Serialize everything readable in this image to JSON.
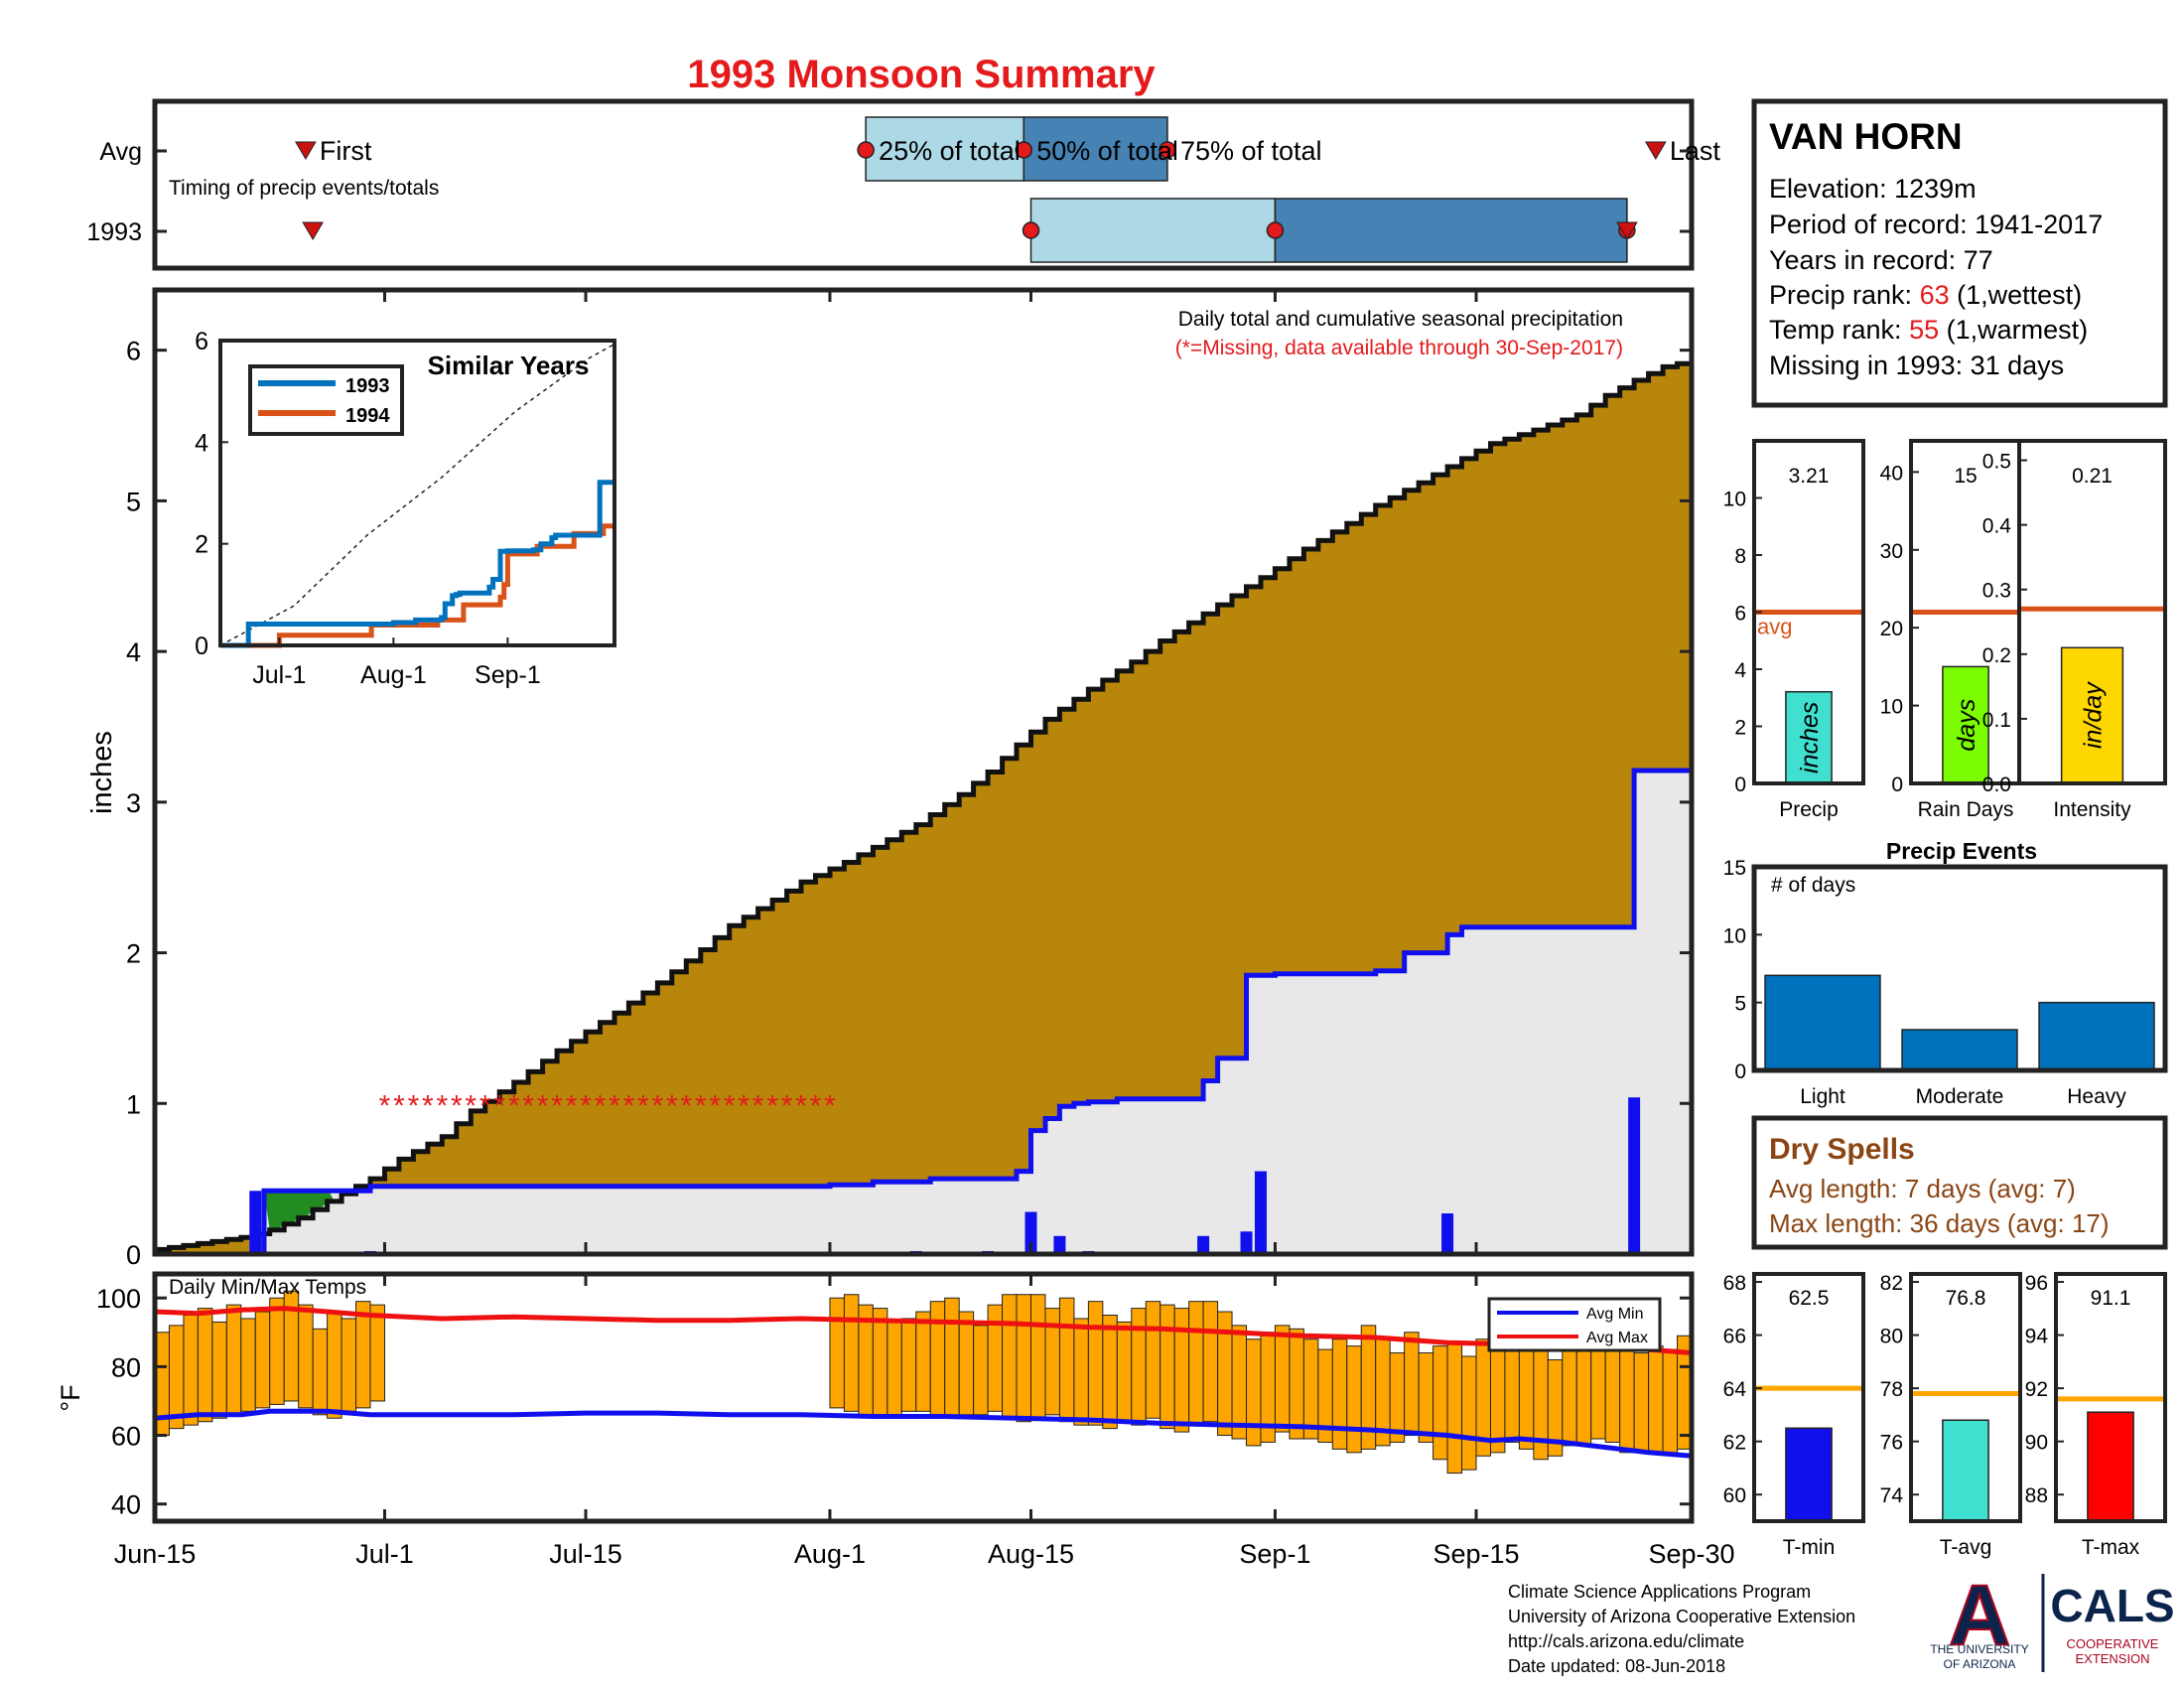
{
  "colors": {
    "red": "#e41a1c",
    "dark_red": "#cc1111",
    "normal_fill": "#b8860b",
    "obs_fill": "#e8e8e8",
    "obs_line": "#1010ee",
    "daily_bar": "#1010ee",
    "green": "#228b22",
    "light_blue": "#add8e6",
    "steel_blue": "#4682b4",
    "orange_line": "#d95319",
    "sim_1993": "#0072bd",
    "sim_1994": "#d95319",
    "temp_bar": "#ffa500",
    "avg_min": "#1010ee",
    "avg_max": "#ee1111",
    "cyan": "#40e0d0",
    "lime": "#7cfc00",
    "gold": "#ffd700",
    "event_blue": "#0072bd",
    "brown": "#8b4513",
    "ua_navy": "#0c234b",
    "ua_red": "#ab0520"
  },
  "title": "1993 Monsoon Summary",
  "timing": {
    "row_labels": [
      "Avg",
      "1993"
    ],
    "note": "Timing of precip events/totals",
    "first_label": "First",
    "last_label": "Last",
    "p25_label": "25% of total",
    "p50_label": "50% of total",
    "p75_label": "75% of total",
    "avg": {
      "first_day": 10.5,
      "p25_day": 49.5,
      "p50_day": 60.5,
      "p75_day": 70.5,
      "last_day": 104.5
    },
    "obs": {
      "first_day": 11,
      "p25_day": 61,
      "p50_day": 78,
      "p75_day": 102.5,
      "last_day": 102.5
    }
  },
  "station": {
    "name": "VAN HORN",
    "elevation": "Elevation: 1239m",
    "period": "Period of record: 1941-2017",
    "years": "Years in record: 77",
    "precip_rank_prefix": "Precip rank: ",
    "precip_rank_value": "63",
    "precip_rank_suffix": " (1,wettest)",
    "temp_rank_prefix": "Temp rank: ",
    "temp_rank_value": "55",
    "temp_rank_suffix": " (1,warmest)",
    "missing": "Missing in 1993: 31 days"
  },
  "main_chart": {
    "ylabel": "inches",
    "note_line1": "Daily total and cumulative seasonal precipitation",
    "note_line2": "(*=Missing, data available through 30-Sep-2017)",
    "x_ticks": [
      {
        "label": "Jun-15",
        "day": 0
      },
      {
        "label": "Jul-1",
        "day": 16
      },
      {
        "label": "Jul-15",
        "day": 30
      },
      {
        "label": "Aug-1",
        "day": 47
      },
      {
        "label": "Aug-15",
        "day": 61
      },
      {
        "label": "Sep-1",
        "day": 78
      },
      {
        "label": "Sep-15",
        "day": 92
      },
      {
        "label": "Sep-30",
        "day": 107
      }
    ],
    "y_ticks": [
      "0",
      "1",
      "2",
      "3",
      "4",
      "5",
      "6"
    ],
    "missing_marker": "*"
  },
  "chart_data": [
    {
      "type": "area",
      "title": "Daily total and cumulative seasonal precipitation",
      "ylabel": "inches",
      "x_unit": "day from Jun-15",
      "xlim": [
        0,
        107
      ],
      "ylim": [
        0,
        6.4
      ],
      "normal_cumulative": {
        "x": [
          0,
          3,
          6,
          8,
          10,
          12,
          15,
          17,
          20,
          22,
          25,
          28,
          32,
          35,
          38,
          40,
          43,
          45,
          48,
          50,
          53,
          56,
          58,
          60,
          62,
          65,
          68,
          70,
          73,
          75,
          78,
          80,
          83,
          85,
          88,
          91,
          93,
          96,
          99,
          101,
          103,
          105,
          107
        ],
        "y": [
          0.03,
          0.07,
          0.11,
          0.16,
          0.24,
          0.35,
          0.5,
          0.63,
          0.78,
          0.95,
          1.14,
          1.35,
          1.6,
          1.8,
          2.02,
          2.18,
          2.35,
          2.47,
          2.6,
          2.7,
          2.85,
          3.05,
          3.2,
          3.38,
          3.55,
          3.75,
          3.93,
          4.07,
          4.25,
          4.37,
          4.55,
          4.68,
          4.85,
          4.97,
          5.12,
          5.28,
          5.38,
          5.47,
          5.57,
          5.7,
          5.8,
          5.89,
          5.93
        ]
      },
      "observed_cumulative": {
        "x": [
          0,
          7,
          7.6,
          14,
          15,
          46,
          47,
          50,
          54,
          60,
          61,
          62,
          63,
          64,
          65,
          67,
          73,
          74,
          76,
          77,
          78,
          85,
          87,
          90,
          91,
          102,
          103,
          107
        ],
        "y": [
          0,
          0,
          0.42,
          0.42,
          0.45,
          0.45,
          0.46,
          0.48,
          0.5,
          0.55,
          0.82,
          0.9,
          0.98,
          1.0,
          1.01,
          1.03,
          1.15,
          1.3,
          1.85,
          1.85,
          1.86,
          1.88,
          2.0,
          2.12,
          2.17,
          2.17,
          3.21,
          3.21
        ]
      },
      "daily": {
        "x": [
          7,
          15,
          53,
          58,
          61,
          63,
          65,
          73,
          76,
          77,
          90,
          103
        ],
        "y": [
          0.42,
          0.02,
          0.02,
          0.02,
          0.28,
          0.12,
          0.02,
          0.12,
          0.15,
          0.55,
          0.27,
          1.04
        ]
      },
      "green_region": {
        "x_start": 7.6,
        "x_end": 12.5
      },
      "missing_days": {
        "start": 16,
        "end": 47,
        "marker_y": 1.0
      }
    },
    {
      "type": "line",
      "title": "Similar Years",
      "x_ticks": [
        "Jul-1",
        "Aug-1",
        "Sep-1"
      ],
      "y_ticks": [
        "0",
        "2",
        "4",
        "6"
      ],
      "xlim": [
        0,
        107
      ],
      "ylim": [
        0,
        6
      ],
      "series": [
        {
          "name": "1993",
          "x": [
            0,
            7,
            7.6,
            46,
            47,
            53,
            60,
            61,
            63,
            64,
            65,
            73,
            74,
            76,
            78,
            85,
            87,
            90,
            91,
            102,
            103,
            107
          ],
          "y": [
            0,
            0,
            0.42,
            0.42,
            0.45,
            0.5,
            0.55,
            0.82,
            0.98,
            1.0,
            1.03,
            1.15,
            1.3,
            1.85,
            1.86,
            1.88,
            2.0,
            2.12,
            2.17,
            2.17,
            3.21,
            3.21
          ]
        },
        {
          "name": "1994",
          "x": [
            0,
            15,
            16,
            40,
            41,
            58,
            59,
            65,
            66,
            75,
            76,
            77,
            78,
            85,
            86,
            95,
            96,
            103,
            104,
            107
          ],
          "y": [
            0,
            0,
            0.2,
            0.2,
            0.4,
            0.4,
            0.5,
            0.5,
            0.8,
            0.8,
            0.95,
            1.2,
            1.8,
            1.8,
            1.95,
            1.95,
            2.2,
            2.2,
            2.35,
            2.35
          ]
        },
        {
          "name": "normal",
          "x": [
            0,
            20,
            40,
            60,
            80,
            100,
            107
          ],
          "y": [
            0,
            0.78,
            2.18,
            3.3,
            4.6,
            5.65,
            5.93
          ]
        }
      ]
    },
    {
      "type": "bar",
      "title": "Daily Min/Max Temps",
      "ylabel": "°F",
      "y_ticks": [
        "40",
        "60",
        "80",
        "100"
      ],
      "ylim": [
        35,
        107
      ],
      "legend": [
        "Avg Min",
        "Avg Max"
      ],
      "legend_position": "top-right",
      "segments": [
        {
          "start_day": 0,
          "min": [
            60,
            62,
            63,
            64,
            65,
            66,
            67,
            68,
            69,
            70,
            68,
            66,
            65,
            67,
            68,
            70
          ],
          "max": [
            90,
            92,
            95,
            97,
            93,
            98,
            94,
            96,
            100,
            102,
            98,
            91,
            96,
            94,
            99,
            98
          ]
        },
        {
          "start_day": 47,
          "min": [
            68,
            67,
            66,
            65,
            66,
            67,
            67,
            66,
            65,
            66,
            66,
            67,
            65,
            64,
            65,
            66,
            64,
            63,
            63,
            62,
            64,
            63,
            65,
            62,
            61,
            63,
            64,
            60,
            59,
            57,
            58,
            61,
            59,
            59,
            58,
            56,
            55,
            56,
            57,
            58,
            60,
            58,
            53,
            49,
            50,
            54,
            55,
            58,
            56,
            53,
            54,
            57,
            57,
            59,
            58,
            55,
            55,
            55,
            55,
            56
          ],
          "max": [
            100,
            101,
            98,
            97,
            93,
            94,
            96,
            99,
            100,
            96,
            92,
            98,
            101,
            101,
            101,
            97,
            100,
            94,
            99,
            95,
            93,
            97,
            99,
            98,
            97,
            99,
            99,
            96,
            92,
            88,
            90,
            92,
            91,
            88,
            85,
            88,
            86,
            92,
            88,
            84,
            90,
            84,
            86,
            87,
            83,
            88,
            87,
            86,
            86,
            87,
            82,
            88,
            89,
            86,
            88,
            87,
            84,
            86,
            85,
            89
          ]
        }
      ],
      "avg_min": {
        "x": [
          0,
          3,
          6,
          8,
          12,
          15,
          20,
          25,
          30,
          35,
          40,
          45,
          50,
          55,
          60,
          65,
          70,
          75,
          80,
          85,
          90,
          93,
          95,
          98,
          100,
          104,
          107
        ],
        "y": [
          65,
          66,
          66,
          67,
          67,
          66,
          66,
          66,
          66.5,
          66.5,
          66,
          66,
          65.5,
          65.5,
          65,
          64.5,
          63.5,
          63,
          62.5,
          61.5,
          60,
          58.5,
          59,
          58,
          57,
          55,
          54
        ]
      },
      "avg_max": {
        "x": [
          0,
          3,
          6,
          9,
          12,
          15,
          20,
          25,
          30,
          35,
          40,
          45,
          50,
          55,
          60,
          65,
          70,
          75,
          80,
          85,
          90,
          95,
          100,
          104,
          107
        ],
        "y": [
          96,
          95.5,
          96.5,
          97,
          96,
          95,
          94,
          94.5,
          94,
          93.5,
          93.5,
          94,
          93.5,
          93,
          92.5,
          91.5,
          91,
          90,
          89,
          88.5,
          87,
          86.5,
          86,
          85,
          84
        ]
      }
    },
    {
      "type": "bar",
      "title": "Precip",
      "categories": [
        "Precip"
      ],
      "values": [
        3.21
      ],
      "value_label": "3.21",
      "avg": 6,
      "avg_label": "avg",
      "unit": "inches",
      "ylim": [
        0,
        12
      ],
      "y_ticks": [
        0,
        2,
        4,
        6,
        8,
        10
      ]
    },
    {
      "type": "bar",
      "title": "Rain Days",
      "categories": [
        "Rain Days"
      ],
      "values": [
        15
      ],
      "value_label": "15",
      "avg": 22,
      "unit": "days",
      "ylim": [
        0,
        44
      ],
      "y_ticks": [
        0,
        10,
        20,
        30,
        40
      ]
    },
    {
      "type": "bar",
      "title": "Intensity",
      "categories": [
        "Intensity"
      ],
      "values": [
        0.21
      ],
      "value_label": "0.21",
      "avg": 0.27,
      "unit": "in/day",
      "ylim": [
        0,
        0.53
      ],
      "y_ticks": [
        0,
        0.1,
        0.2,
        0.3,
        0.4,
        0.5
      ]
    },
    {
      "type": "bar",
      "title": "Precip Events",
      "ylabel_note": "# of days",
      "categories": [
        "Light",
        "Moderate",
        "Heavy"
      ],
      "values": [
        7,
        3,
        5
      ],
      "ylim": [
        0,
        15
      ],
      "y_ticks": [
        0,
        5,
        10,
        15
      ]
    },
    {
      "type": "bar",
      "title": "T-min",
      "categories": [
        "T-min"
      ],
      "values": [
        62.5
      ],
      "value_label": "62.5",
      "avg": 64,
      "ylim": [
        59,
        68.3
      ],
      "y_ticks": [
        60,
        62,
        64,
        66,
        68
      ]
    },
    {
      "type": "bar",
      "title": "T-avg",
      "categories": [
        "T-avg"
      ],
      "values": [
        76.8
      ],
      "value_label": "76.8",
      "avg": 77.8,
      "ylim": [
        73,
        82.3
      ],
      "y_ticks": [
        74,
        76,
        78,
        80,
        82
      ]
    },
    {
      "type": "bar",
      "title": "T-max",
      "categories": [
        "T-max"
      ],
      "values": [
        91.1
      ],
      "value_label": "91.1",
      "avg": 91.6,
      "ylim": [
        87,
        96.3
      ],
      "y_ticks": [
        88,
        90,
        92,
        94,
        96
      ]
    }
  ],
  "dry_spells": {
    "title": "Dry Spells",
    "avg_length": "Avg length: 7 days (avg: 7)",
    "max_length": "Max length: 36 days (avg: 17)"
  },
  "footer": {
    "line1": "Climate Science Applications Program",
    "line2": "University of Arizona Cooperative Extension",
    "line3": "http://cals.arizona.edu/climate",
    "line4": " Date updated: 08-Jun-2018"
  },
  "logos": {
    "ua_letter": "A",
    "ua_line1": "THE UNIVERSITY",
    "ua_line2": "OF ARIZONA",
    "cals_name": "CALS",
    "cals_line1": "COOPERATIVE",
    "cals_line2": "EXTENSION"
  }
}
